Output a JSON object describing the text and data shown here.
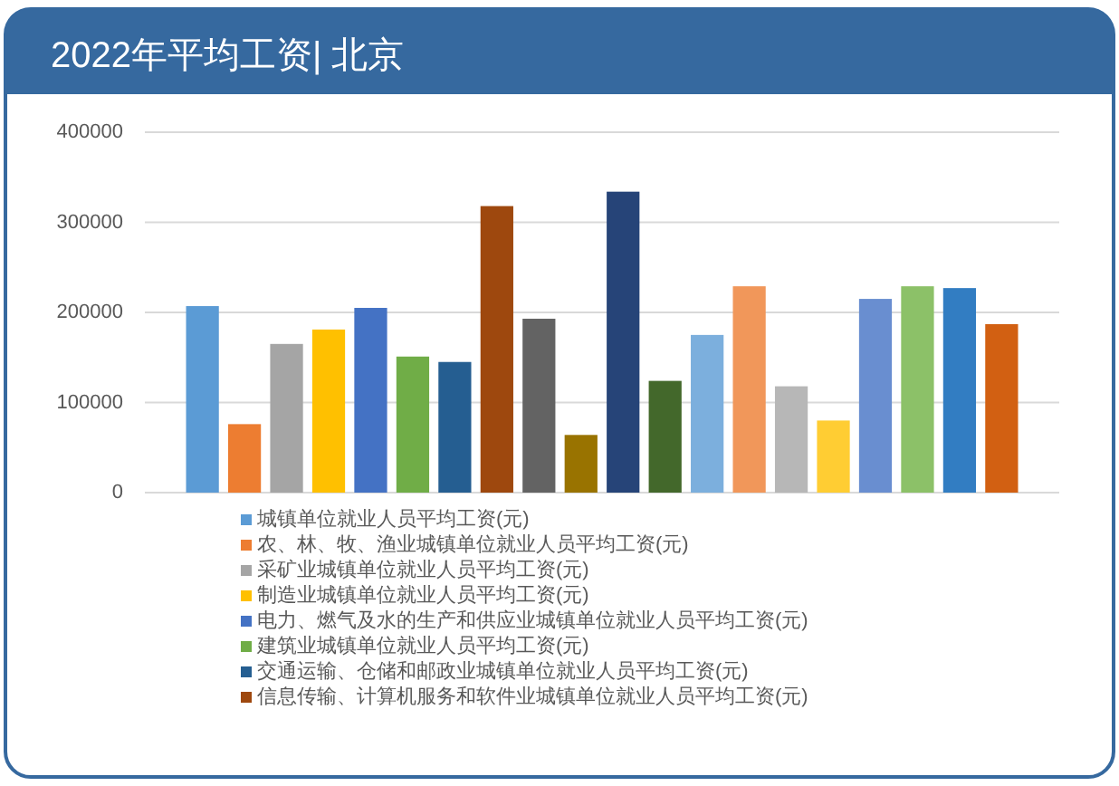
{
  "chart_data": {
    "type": "bar",
    "title": "2022年平均工资| 北京",
    "categories": [
      null
    ],
    "series": [
      {
        "name": "城镇单位就业人员平均工资(元)",
        "color": "#5b9bd5",
        "values": [
          207000
        ]
      },
      {
        "name": "农、林、牧、渔业城镇单位就业人员平均工资(元)",
        "color": "#ed7d31",
        "values": [
          76000
        ]
      },
      {
        "name": "采矿业城镇单位就业人员平均工资(元)",
        "color": "#a5a5a5",
        "values": [
          165000
        ]
      },
      {
        "name": "制造业城镇单位就业人员平均工资(元)",
        "color": "#ffc000",
        "values": [
          181000
        ]
      },
      {
        "name": "电力、燃气及水的生产和供应业城镇单位就业人员平均工资(元)",
        "color": "#4472c4",
        "values": [
          205000
        ]
      },
      {
        "name": "建筑业城镇单位就业人员平均工资(元)",
        "color": "#70ad47",
        "values": [
          151000
        ]
      },
      {
        "name": "交通运输、仓储和邮政业城镇单位就业人员平均工资(元)",
        "color": "#255e91",
        "values": [
          145000
        ]
      },
      {
        "name": "信息传输、计算机服务和软件业城镇单位就业人员平均工资(元)",
        "color": "#9e480e",
        "values": [
          318000
        ]
      },
      {
        "color": "#636363",
        "values": [
          193000
        ]
      },
      {
        "color": "#997300",
        "values": [
          64000
        ]
      },
      {
        "color": "#264478",
        "values": [
          334000
        ]
      },
      {
        "color": "#43682b",
        "values": [
          124000
        ]
      },
      {
        "color": "#7cafdd",
        "values": [
          175000
        ]
      },
      {
        "color": "#f1975a",
        "values": [
          229000
        ]
      },
      {
        "color": "#b7b7b7",
        "values": [
          118000
        ]
      },
      {
        "color": "#ffcd33",
        "values": [
          80000
        ]
      },
      {
        "color": "#698ed0",
        "values": [
          215000
        ]
      },
      {
        "color": "#8cc168",
        "values": [
          229000
        ]
      },
      {
        "color": "#327dc2",
        "values": [
          227000
        ]
      },
      {
        "color": "#d26012",
        "values": [
          187000
        ]
      }
    ],
    "ylim": [
      0,
      400000
    ],
    "yticks": [
      0,
      100000,
      200000,
      300000,
      400000
    ],
    "grid": "y",
    "legend": "bottom"
  }
}
